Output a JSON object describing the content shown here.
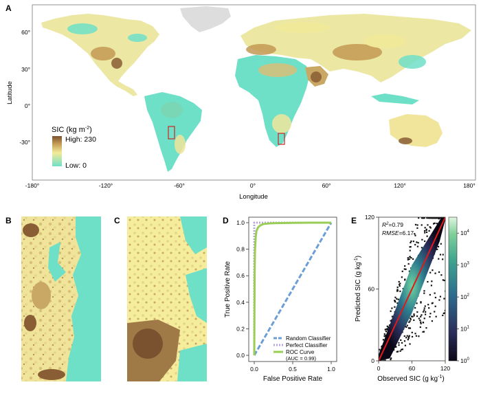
{
  "panel_labels": {
    "a": "A",
    "b": "B",
    "c": "C",
    "d": "D",
    "e": "E"
  },
  "map": {
    "xlabel": "Longitude",
    "ylabel": "Latitude",
    "x_ticks": [
      "-180°",
      "-120°",
      "-60°",
      "0°",
      "60°",
      "120°",
      "180°"
    ],
    "y_ticks": [
      "60°",
      "30°",
      "0°",
      "-30°"
    ],
    "legend": {
      "title_main": "SIC (kg m",
      "title_sup": "-2",
      "title_end": ")",
      "high": "High: 230",
      "low": "Low: 0"
    },
    "colors": {
      "high": "#7a5230",
      "mid": "#f3ea99",
      "low": "#6fe0c8",
      "ocean": "#ffffff",
      "land": "#ece7a3",
      "inset_box": "#cc2222"
    }
  },
  "chart_data": [
    {
      "panel": "D",
      "type": "line",
      "xlabel": "False Positive Rate",
      "ylabel": "True Positive Rate",
      "xlim": [
        0,
        1
      ],
      "ylim": [
        0,
        1
      ],
      "x_ticks": [
        "0.0",
        "0.5",
        "1.0"
      ],
      "y_ticks": [
        "0.0",
        "0.2",
        "0.4",
        "0.6",
        "0.8",
        "1.0"
      ],
      "series": [
        {
          "name": "Random Classifier",
          "color": "#6c9ed6",
          "style": "dashed",
          "x": [
            0,
            1
          ],
          "y": [
            0,
            1
          ]
        },
        {
          "name": "Perfect Classifier",
          "color": "#b9a6d8",
          "style": "dotted",
          "x": [
            0,
            0,
            1
          ],
          "y": [
            0,
            1,
            1
          ]
        },
        {
          "name": "ROC Curve",
          "color": "#9acd55",
          "style": "solid",
          "x": [
            0,
            0.005,
            0.01,
            0.02,
            0.03,
            0.05,
            0.08,
            0.12,
            0.2,
            0.3,
            0.5,
            0.75,
            1.0
          ],
          "y": [
            0,
            0.6,
            0.8,
            0.9,
            0.94,
            0.965,
            0.98,
            0.99,
            0.995,
            0.997,
            0.999,
            1.0,
            1.0
          ]
        }
      ],
      "legend_note": "(AUC = 0.99)"
    },
    {
      "panel": "E",
      "type": "heatmap",
      "xlabel_main": "Observed SIC (g kg",
      "ylabel_main": "Predicted SIC (g kg",
      "unit_sup": "-1",
      "unit_end": ")",
      "xlim": [
        0,
        120
      ],
      "ylim": [
        0,
        120
      ],
      "x_ticks": [
        0,
        60,
        120
      ],
      "y_ticks": [
        0,
        60,
        120
      ],
      "fit_line": {
        "x": [
          0,
          120
        ],
        "y": [
          0,
          120
        ],
        "color": "#e01a1a"
      },
      "annotation_r2": {
        "label": "R",
        "sup": "2",
        "value": "=0.79"
      },
      "annotation_rmse": {
        "label": "RMSE",
        "value": "=6.17"
      },
      "colorbar": {
        "scale": "log",
        "min_exp": 0,
        "max_exp": 4.5,
        "tick_base": "10",
        "tick_exps": [
          "0",
          "1",
          "2",
          "3",
          "4"
        ]
      }
    }
  ]
}
